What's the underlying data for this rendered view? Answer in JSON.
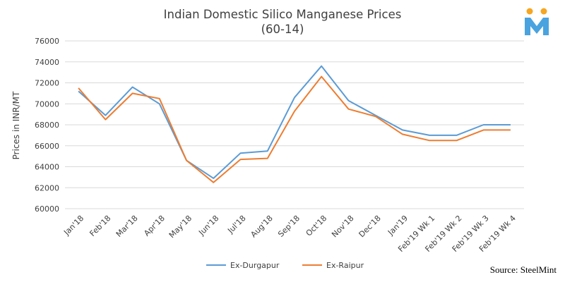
{
  "chart_data": {
    "type": "line",
    "title": "Indian Domestic Silico Manganese Prices",
    "subtitle": "(60-14)",
    "xlabel": "",
    "ylabel": "Prices in INR/MT",
    "ylim": [
      60000,
      76000
    ],
    "yticks": [
      60000,
      62000,
      64000,
      66000,
      68000,
      70000,
      72000,
      74000,
      76000
    ],
    "grid": "horizontal",
    "legend_position": "bottom",
    "categories": [
      "Jan'18",
      "Feb'18",
      "Mar'18",
      "Apr'18",
      "May'18",
      "Jun'18",
      "Jul'18",
      "Aug'18",
      "Sep'18",
      "Oct'18",
      "Nov'18",
      "Dec'18",
      "Jan'19",
      "Feb'19 Wk 1",
      "Feb'19 Wk 2",
      "Feb'19 Wk 3",
      "Feb'19 Wk 4"
    ],
    "series": [
      {
        "name": "Ex-Durgapur",
        "color": "#5b9bd5",
        "values": [
          71200,
          68900,
          71600,
          70000,
          64600,
          62900,
          65300,
          65500,
          70600,
          73600,
          70300,
          68900,
          67500,
          67000,
          67000,
          68000,
          68000
        ]
      },
      {
        "name": "Ex-Raipur",
        "color": "#ed7d31",
        "values": [
          71500,
          68500,
          71000,
          70500,
          64600,
          62500,
          64700,
          64800,
          69300,
          72600,
          69500,
          68800,
          67100,
          66500,
          66500,
          67500,
          67500
        ]
      }
    ]
  },
  "source": "Source: SteelMint",
  "logo": {
    "icon": "steelmint-logo-icon",
    "letter": "M",
    "colors": {
      "letter": "#4aa3df",
      "dots": "#f5a623"
    }
  }
}
